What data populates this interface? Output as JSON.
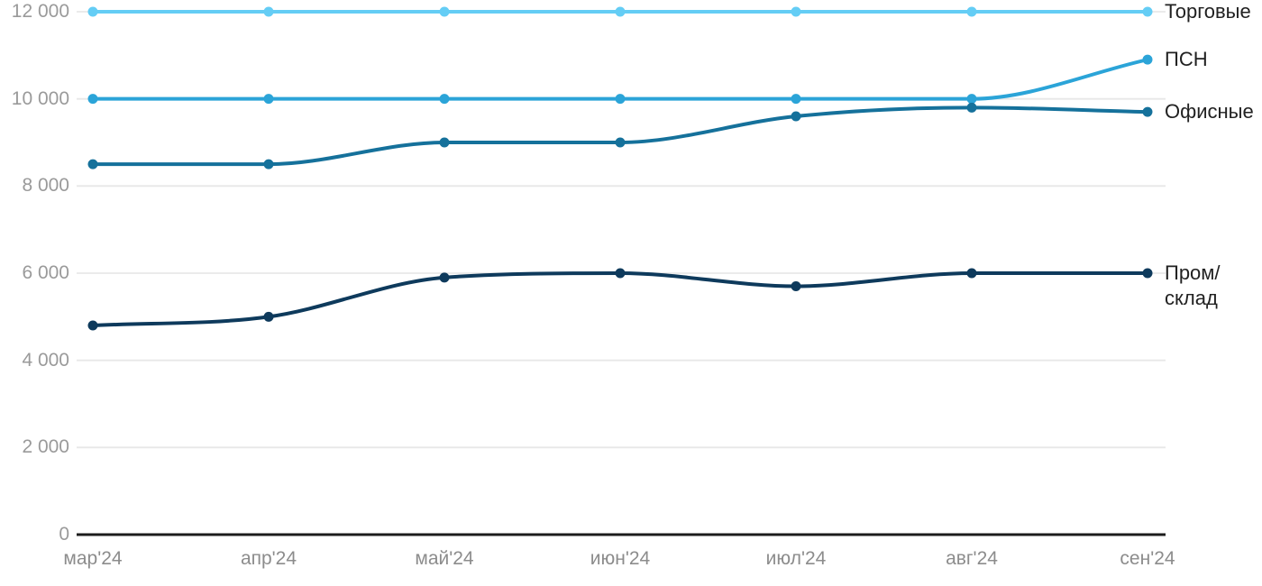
{
  "chart_data": {
    "type": "line",
    "title": "",
    "xlabel": "",
    "ylabel": "",
    "x": [
      "мар'24",
      "апр'24",
      "май'24",
      "июн'24",
      "июл'24",
      "авг'24",
      "сен'24"
    ],
    "series": [
      {
        "name": "Торговые",
        "label_lines": [
          "Торговые"
        ],
        "color": "#64CDF5",
        "values": [
          12000,
          12000,
          12000,
          12000,
          12000,
          12000,
          12000
        ]
      },
      {
        "name": "ПСН",
        "label_lines": [
          "ПСН"
        ],
        "color": "#2BA4D8",
        "values": [
          10000,
          10000,
          10000,
          10000,
          10000,
          10000,
          10900
        ]
      },
      {
        "name": "Офисные",
        "label_lines": [
          "Офисные"
        ],
        "color": "#15719B",
        "values": [
          8500,
          8500,
          9000,
          9000,
          9600,
          9800,
          9700
        ]
      },
      {
        "name": "Пром/склад",
        "label_lines": [
          "Пром/",
          "склад"
        ],
        "color": "#0E3A5C",
        "values": [
          4800,
          5000,
          5900,
          6000,
          5700,
          6000,
          6000
        ]
      }
    ],
    "y_ticks": [
      {
        "value": 0,
        "label": "0"
      },
      {
        "value": 2000,
        "label": "2 000"
      },
      {
        "value": 4000,
        "label": "4 000"
      },
      {
        "value": 6000,
        "label": "6 000"
      },
      {
        "value": 8000,
        "label": "8 000"
      },
      {
        "value": 10000,
        "label": "10 000"
      },
      {
        "value": 12000,
        "label": "12 000"
      }
    ],
    "ylim": [
      0,
      12000
    ],
    "grid": "horizontal",
    "legend_position": "right-of-line-ends",
    "interpolation": "smooth-monotone"
  },
  "styles": {
    "background": "#ffffff",
    "grid_color": "#e8e8e8",
    "axis_line_color": "#1c1c1c",
    "y_tick_color": "#9a9a9a",
    "x_tick_color": "#8c8c8c",
    "legend_text_color": "#212121"
  }
}
